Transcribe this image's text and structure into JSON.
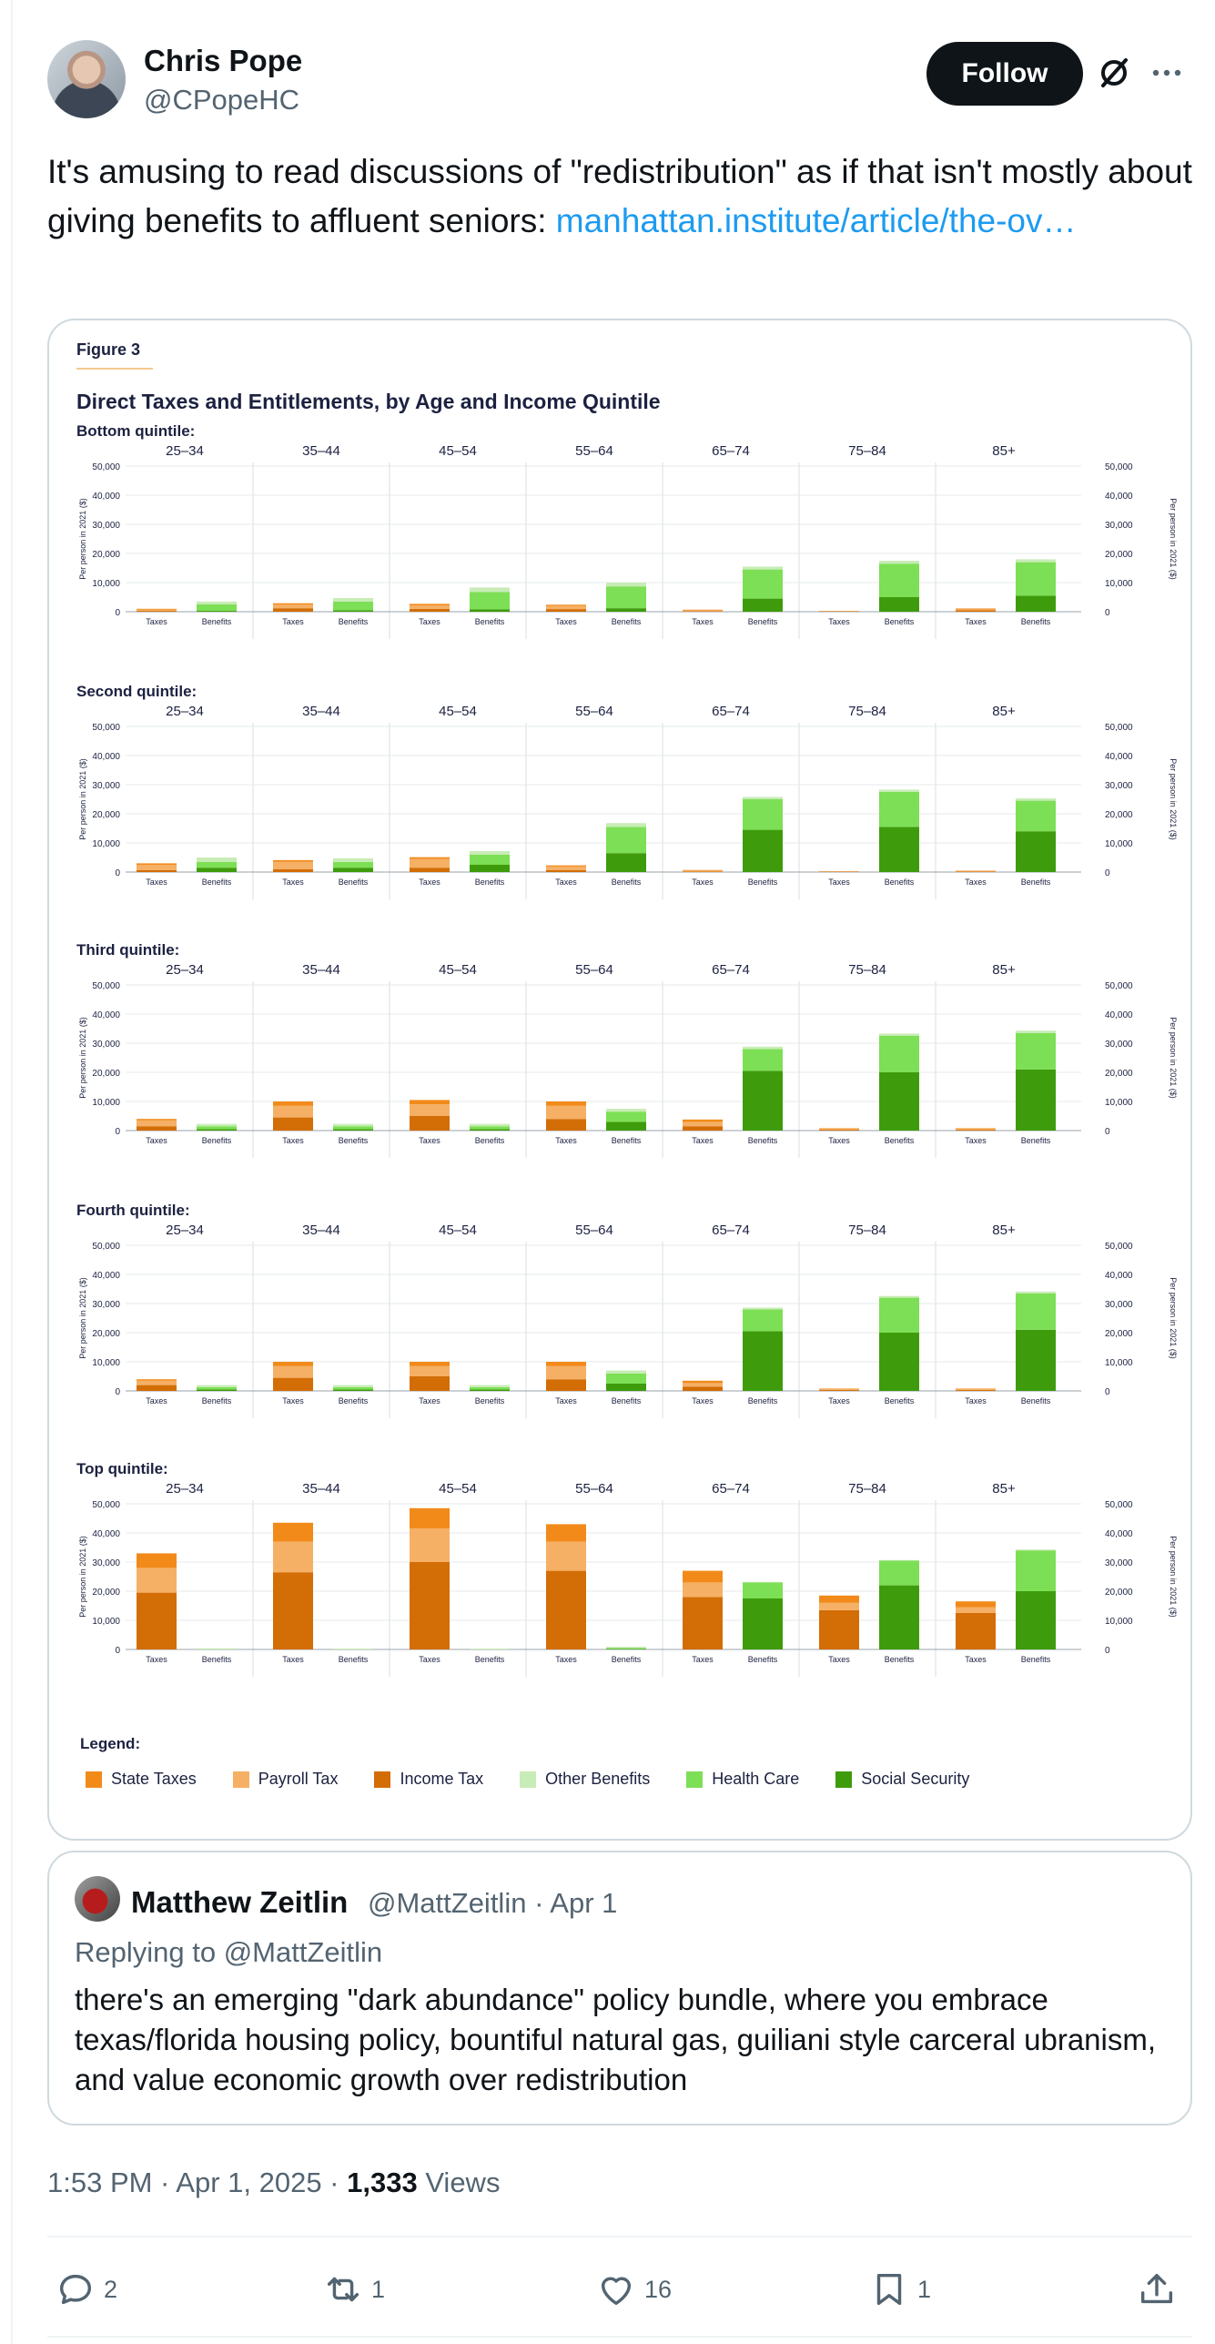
{
  "author": {
    "name": "Chris Pope",
    "handle": "@CPopeHC",
    "follow_label": "Follow"
  },
  "tweet": {
    "text": "It's amusing to read discussions of \"redistribution\" as if that isn't mostly about giving benefits to affluent seniors: ",
    "link_text": "manhattan.institute/article/the-ov…"
  },
  "figure": {
    "label": "Figure 3",
    "title": "Direct Taxes and Entitlements, by Age and Income Quintile",
    "y_axis_label": "Per person in 2021 ($)",
    "legend_title": "Legend:",
    "legend": [
      {
        "name": "State Taxes",
        "color": "#f28a1a"
      },
      {
        "name": "Payroll Tax",
        "color": "#f5b065"
      },
      {
        "name": "Income Tax",
        "color": "#d36d05"
      },
      {
        "name": "Other Benefits",
        "color": "#c8ecb6"
      },
      {
        "name": "Health Care",
        "color": "#7ddf55"
      },
      {
        "name": "Social Security",
        "color": "#3e9b0c"
      }
    ]
  },
  "chart_data": {
    "type": "bar",
    "stacked": true,
    "age_groups": [
      "25–34",
      "35–44",
      "45–54",
      "55–64",
      "65–74",
      "75–84",
      "85+"
    ],
    "categories": [
      "Taxes",
      "Benefits"
    ],
    "ylim": [
      0,
      50000
    ],
    "yticks": [
      "0",
      "10,000",
      "20,000",
      "30,000",
      "40,000",
      "50,000"
    ],
    "panels": [
      {
        "quintile": "Bottom quintile:",
        "taxes": [
          {
            "income": 300,
            "payroll": 400,
            "state": 300
          },
          {
            "income": 1200,
            "payroll": 1200,
            "state": 500
          },
          {
            "income": 1000,
            "payroll": 1200,
            "state": 500
          },
          {
            "income": 900,
            "payroll": 1100,
            "state": 400
          },
          {
            "income": 200,
            "payroll": 300,
            "state": 200
          },
          {
            "income": 100,
            "payroll": 100,
            "state": 100
          },
          {
            "income": 500,
            "payroll": 300,
            "state": 300
          }
        ],
        "benefits": [
          {
            "social_security": 300,
            "health_care": 2200,
            "other": 1000
          },
          {
            "social_security": 500,
            "health_care": 3000,
            "other": 1200
          },
          {
            "social_security": 800,
            "health_care": 6000,
            "other": 1500
          },
          {
            "social_security": 1200,
            "health_care": 7500,
            "other": 1300
          },
          {
            "social_security": 4500,
            "health_care": 10000,
            "other": 1000
          },
          {
            "social_security": 5000,
            "health_care": 11500,
            "other": 1000
          },
          {
            "social_security": 5500,
            "health_care": 11500,
            "other": 1000
          }
        ]
      },
      {
        "quintile": "Second quintile:",
        "taxes": [
          {
            "income": 700,
            "payroll": 1800,
            "state": 500
          },
          {
            "income": 1000,
            "payroll": 2500,
            "state": 600
          },
          {
            "income": 1500,
            "payroll": 3000,
            "state": 600
          },
          {
            "income": 700,
            "payroll": 1200,
            "state": 400
          },
          {
            "income": 200,
            "payroll": 300,
            "state": 200
          },
          {
            "income": 100,
            "payroll": 100,
            "state": 100
          },
          {
            "income": 200,
            "payroll": 200,
            "state": 100
          }
        ],
        "benefits": [
          {
            "social_security": 1500,
            "health_care": 2000,
            "other": 1500
          },
          {
            "social_security": 1500,
            "health_care": 2000,
            "other": 1200
          },
          {
            "social_security": 2500,
            "health_care": 3500,
            "other": 1200
          },
          {
            "social_security": 6500,
            "health_care": 9000,
            "other": 1300
          },
          {
            "social_security": 14500,
            "health_care": 10500,
            "other": 800
          },
          {
            "social_security": 15500,
            "health_care": 12000,
            "other": 800
          },
          {
            "social_security": 14000,
            "health_care": 10500,
            "other": 800
          }
        ]
      },
      {
        "quintile": "Third quintile:",
        "taxes": [
          {
            "income": 1500,
            "payroll": 2000,
            "state": 500
          },
          {
            "income": 4500,
            "payroll": 4000,
            "state": 1500
          },
          {
            "income": 5000,
            "payroll": 4000,
            "state": 1500
          },
          {
            "income": 4000,
            "payroll": 4500,
            "state": 1500
          },
          {
            "income": 1500,
            "payroll": 1500,
            "state": 800
          },
          {
            "income": 300,
            "payroll": 300,
            "state": 200
          },
          {
            "income": 300,
            "payroll": 300,
            "state": 200
          }
        ],
        "benefits": [
          {
            "social_security": 500,
            "health_care": 1000,
            "other": 800
          },
          {
            "social_security": 500,
            "health_care": 1000,
            "other": 800
          },
          {
            "social_security": 500,
            "health_care": 1000,
            "other": 800
          },
          {
            "social_security": 3000,
            "health_care": 3500,
            "other": 1000
          },
          {
            "social_security": 20500,
            "health_care": 7500,
            "other": 800
          },
          {
            "social_security": 20000,
            "health_care": 12500,
            "other": 800
          },
          {
            "social_security": 21000,
            "health_care": 12500,
            "other": 800
          }
        ]
      },
      {
        "quintile": "Fourth quintile:",
        "taxes": [
          {
            "income": 2000,
            "payroll": 1500,
            "state": 500
          },
          {
            "income": 4500,
            "payroll": 4000,
            "state": 1500
          },
          {
            "income": 5000,
            "payroll": 3500,
            "state": 1500
          },
          {
            "income": 4000,
            "payroll": 4500,
            "state": 1500
          },
          {
            "income": 1500,
            "payroll": 1200,
            "state": 800
          },
          {
            "income": 300,
            "payroll": 300,
            "state": 200
          },
          {
            "income": 300,
            "payroll": 300,
            "state": 200
          }
        ],
        "benefits": [
          {
            "social_security": 500,
            "health_care": 800,
            "other": 700
          },
          {
            "social_security": 500,
            "health_care": 800,
            "other": 700
          },
          {
            "social_security": 500,
            "health_care": 800,
            "other": 700
          },
          {
            "social_security": 2500,
            "health_care": 3500,
            "other": 1000
          },
          {
            "social_security": 20500,
            "health_care": 7500,
            "other": 600
          },
          {
            "social_security": 20000,
            "health_care": 12000,
            "other": 600
          },
          {
            "social_security": 21000,
            "health_care": 12500,
            "other": 600
          }
        ]
      },
      {
        "quintile": "Top quintile:",
        "taxes": [
          {
            "income": 19500,
            "payroll": 8500,
            "state": 5000
          },
          {
            "income": 26500,
            "payroll": 10500,
            "state": 6500
          },
          {
            "income": 30000,
            "payroll": 11500,
            "state": 7000
          },
          {
            "income": 27000,
            "payroll": 10000,
            "state": 6000
          },
          {
            "income": 18000,
            "payroll": 5000,
            "state": 4000
          },
          {
            "income": 13500,
            "payroll": 2500,
            "state": 2500
          },
          {
            "income": 12500,
            "payroll": 2000,
            "state": 2000
          }
        ],
        "benefits": [
          {
            "social_security": 0,
            "health_care": 0,
            "other": 400
          },
          {
            "social_security": 0,
            "health_care": 0,
            "other": 300
          },
          {
            "social_security": 0,
            "health_care": 0,
            "other": 300
          },
          {
            "social_security": 200,
            "health_care": 300,
            "other": 400
          },
          {
            "social_security": 17500,
            "health_care": 5500,
            "other": 200
          },
          {
            "social_security": 22000,
            "health_care": 8500,
            "other": 200
          },
          {
            "social_security": 20000,
            "health_care": 14000,
            "other": 300
          }
        ]
      }
    ]
  },
  "quote": {
    "name": "Matthew Zeitlin",
    "handle_date": "@MattZeitlin · Apr 1",
    "reply_label": "Replying to @MattZeitlin",
    "text": "there's an emerging \"dark abundance\" policy bundle, where you embrace texas/florida housing policy, bountiful natural gas, guiliani style carceral ubranism, and value economic growth over redistribution"
  },
  "meta": {
    "time_date": "1:53 PM · Apr 1, 2025 · ",
    "views_count": "1,333",
    "views_label": " Views"
  },
  "actions": {
    "replies": "2",
    "reposts": "1",
    "likes": "16",
    "bookmarks": "1"
  },
  "icons": [
    "grok-icon",
    "more-icon",
    "reply-icon",
    "repost-icon",
    "like-icon",
    "bookmark-icon",
    "share-icon"
  ]
}
